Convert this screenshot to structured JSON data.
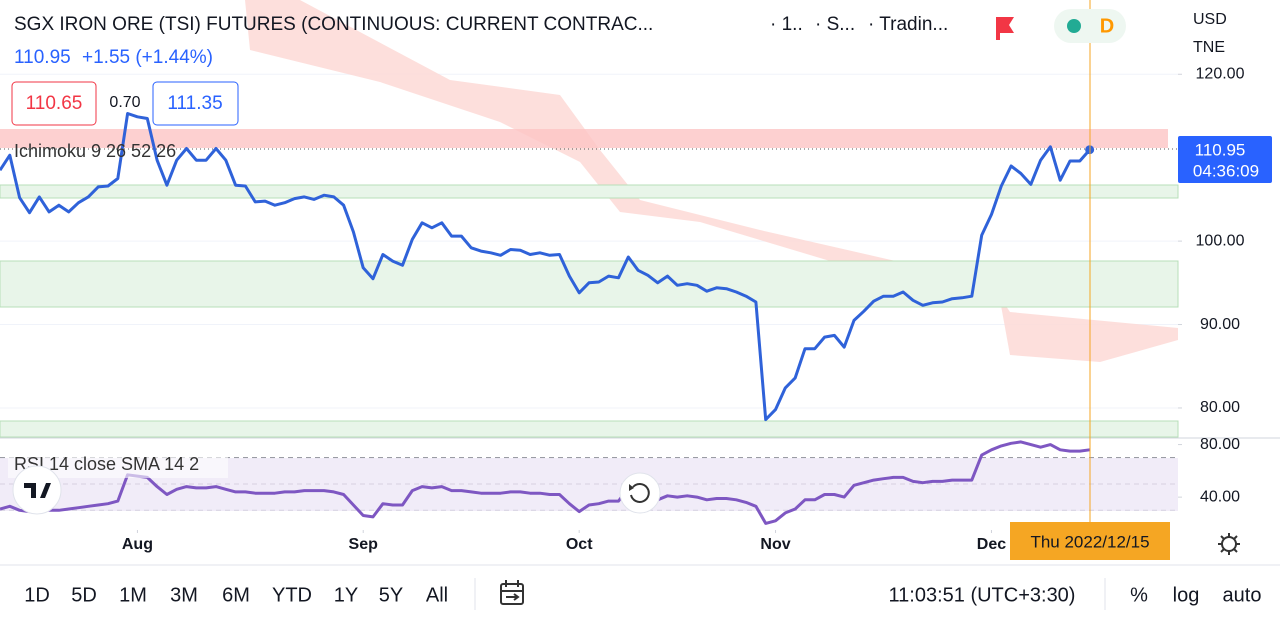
{
  "header": {
    "title": "SGX IRON ORE (TSI) FUTURES (CONTINUOUS: CURRENT CONTRAC...",
    "interval": "· 1..",
    "source": "· S...",
    "exchange": "· Tradin...",
    "badge": "D",
    "currency": "USD",
    "unit": "TNE",
    "price": "110.95",
    "change": "+1.55 (+1.44%)",
    "bid": "110.65",
    "spread": "0.70",
    "ask": "111.35"
  },
  "indicators": {
    "ichimoku": "Ichimoku 9 26 52 26",
    "rsi": "RSI 14 close SMA 14 2"
  },
  "price_label": {
    "price": "110.95",
    "countdown": "04:36:09"
  },
  "crosshair_date": "Thu 2022/12/15",
  "chart_data": [
    {
      "type": "line",
      "color": "#2f62d9",
      "grid": true,
      "xlim": [
        0,
        120
      ],
      "ylim": [
        76.4,
        128.9
      ],
      "yticks": [
        {
          "value": 80,
          "label": "80.00"
        },
        {
          "value": 90,
          "label": "90.00"
        },
        {
          "value": 100,
          "label": "100.00"
        },
        {
          "value": 120,
          "label": "120.00"
        }
      ],
      "xticks": [
        {
          "value": 14,
          "label": "Aug"
        },
        {
          "value": 37,
          "label": "Sep"
        },
        {
          "value": 59,
          "label": "Oct"
        },
        {
          "value": 79,
          "label": "Nov"
        },
        {
          "value": 101,
          "label": "Dec"
        }
      ],
      "values": [
        108.5,
        110.3,
        105.2,
        103.4,
        105.3,
        103.5,
        104.3,
        103.5,
        104.6,
        105.3,
        106.5,
        106.6,
        107.5,
        115.3,
        114.9,
        114.7,
        109.7,
        106.7,
        109.7,
        111.1,
        109.7,
        109.7,
        111.1,
        109.7,
        106.7,
        106.6,
        104.7,
        104.8,
        104.3,
        104.6,
        105.1,
        105.3,
        105.0,
        105.5,
        105.3,
        104.3,
        101.1,
        96.8,
        95.5,
        98.4,
        97.6,
        97.1,
        100.2,
        102.2,
        101.6,
        102.2,
        100.6,
        100.6,
        99.2,
        98.8,
        98.6,
        98.3,
        99.0,
        98.9,
        98.4,
        98.6,
        98.3,
        98.4,
        95.8,
        93.8,
        95.0,
        95.1,
        95.8,
        95.6,
        98.1,
        96.5,
        95.9,
        95.0,
        95.8,
        94.7,
        94.9,
        94.7,
        94.0,
        94.4,
        94.3,
        93.9,
        93.4,
        92.7,
        78.6,
        79.8,
        82.4,
        83.6,
        87.1,
        87.1,
        88.5,
        88.7,
        87.3,
        90.5,
        91.6,
        92.8,
        93.4,
        93.4,
        93.9,
        92.9,
        92.3,
        92.6,
        92.7,
        93.1,
        93.2,
        93.4,
        100.7,
        103.2,
        106.6,
        109.0,
        108.1,
        106.8,
        109.7,
        111.3,
        107.3,
        109.6,
        109.6,
        110.95
      ]
    },
    {
      "type": "line",
      "color": "#7e57c2",
      "xlim": [
        0,
        120
      ],
      "ylim": [
        15,
        85
      ],
      "yticks": [
        {
          "value": 80,
          "label": "80.00"
        },
        {
          "value": 40,
          "label": "40.00"
        }
      ],
      "levels": [
        70,
        50,
        30
      ],
      "values": [
        31,
        33,
        30,
        29,
        31,
        30,
        30,
        31,
        32,
        33,
        34,
        35,
        37,
        57,
        56,
        55,
        48,
        42,
        46,
        48,
        47,
        47,
        48,
        46,
        44,
        44,
        43,
        43,
        43,
        44,
        44,
        45,
        45,
        45,
        44,
        42,
        34,
        26,
        25,
        35,
        34,
        34,
        45,
        48,
        47,
        48,
        45,
        45,
        44,
        43,
        43,
        43,
        44,
        44,
        43,
        43,
        42,
        42,
        35,
        29,
        34,
        35,
        37,
        37,
        47,
        42,
        40,
        38,
        41,
        40,
        41,
        40,
        38,
        39,
        39,
        38,
        36,
        33,
        20,
        22,
        28,
        31,
        38,
        38,
        42,
        42,
        40,
        49,
        51,
        53,
        54,
        55,
        55,
        52,
        51,
        52,
        52,
        53,
        53,
        53,
        72,
        76,
        79,
        81,
        82,
        80,
        78,
        80,
        76,
        75,
        75,
        76
      ]
    }
  ],
  "toolbar": {
    "ranges": [
      "1D",
      "5D",
      "1M",
      "3M",
      "6M",
      "YTD",
      "1Y",
      "5Y",
      "All"
    ],
    "clock": "11:03:51 (UTC+3:30)",
    "percent": "%",
    "log": "log",
    "auto": "auto"
  }
}
